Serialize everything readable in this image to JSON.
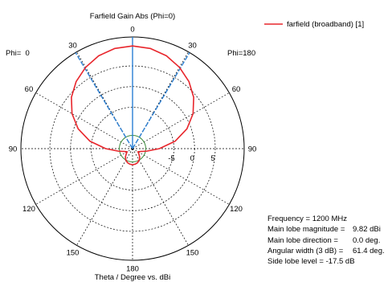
{
  "chart_data": {
    "type": "polar",
    "title": "Farfield Gain Abs (Phi=0)",
    "axis_caption": "Theta / Degree vs. dBi",
    "left_half_label": "Phi=  0",
    "right_half_label": "Phi=180",
    "angle_labels": [
      "0",
      "30",
      "60",
      "90",
      "120",
      "150",
      "180",
      "150",
      "120",
      "90",
      "60",
      "30"
    ],
    "radial_tick_labels": [
      "-5",
      "0",
      "5"
    ],
    "radial_ticks": [
      -5,
      0,
      5
    ],
    "radial_range_dBi": [
      -15,
      12
    ],
    "series": [
      {
        "name": "farfield (broadband) [1]",
        "color": "#e8262c",
        "theta_deg": [
          0,
          10,
          20,
          30,
          40,
          50,
          60,
          70,
          80,
          90,
          100,
          110,
          120,
          130,
          140,
          150,
          160,
          170,
          180
        ],
        "gain_dBi": [
          9.82,
          9.6,
          8.9,
          7.7,
          6.2,
          4.3,
          1.9,
          -1.0,
          -4.5,
          -8.5,
          -11.5,
          -13.0,
          -13.5,
          -13.0,
          -12.3,
          -11.8,
          -11.4,
          -11.2,
          -11.1
        ]
      }
    ],
    "main_lobe_direction_deg": 0.0,
    "beamwidth_3dB_deg": 61.4,
    "beamwidth_line_color": "#2a7fd4",
    "reference_circle_color": "#3a8a3a"
  },
  "info": {
    "frequency": "Frequency = 1200 MHz",
    "magnitude_label": "Main lobe magnitude =",
    "magnitude_value": "9.82 dBi",
    "direction_label": "Main lobe direction =",
    "direction_value": "0.0 deg.",
    "width_label": "Angular width (3 dB) =",
    "width_value": "61.4 deg.",
    "sidelobe": "Side lobe level = -17.5 dB"
  }
}
